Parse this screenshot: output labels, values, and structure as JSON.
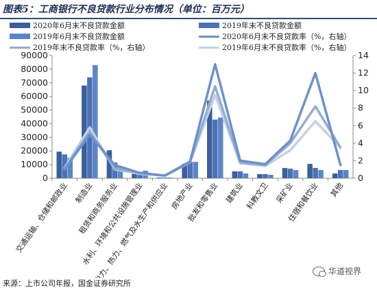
{
  "title": "图表5：工商银行不良贷款行业分布情况（单位：百万元）",
  "source": "来源：上市公司年报，国金证券研究所",
  "watermark": "华道视界",
  "chart_data": {
    "type": "bar",
    "categories": [
      "交通运输、仓储和邮政业",
      "制造业",
      "租赁和商务服务业",
      "水利、环境和公共设施管理业",
      "电力、热力、燃气及水生产和供应业",
      "房地产业",
      "批发和零售业",
      "建筑业",
      "科教文卫",
      "采矿业",
      "住宿和餐饮业",
      "其他"
    ],
    "series": [
      {
        "name": "2020年6月末不良贷款金额",
        "axis": "left",
        "kind": "bar",
        "color": "#3a5f9e",
        "values": [
          19500,
          68000,
          20500,
          4500,
          500,
          10500,
          57000,
          5000,
          3000,
          7500,
          10500,
          3500
        ]
      },
      {
        "name": "2019年末不良贷款金额",
        "axis": "left",
        "kind": "bar",
        "color": "#4a72b4",
        "values": [
          17500,
          74000,
          11500,
          4500,
          500,
          12000,
          43000,
          5000,
          3000,
          7000,
          7500,
          6000
        ]
      },
      {
        "name": "2019年6月末不良贷款金额",
        "axis": "left",
        "kind": "bar",
        "color": "#5a86c8",
        "values": [
          15000,
          83000,
          8500,
          5500,
          500,
          12000,
          44500,
          3500,
          2500,
          6000,
          6000,
          6000
        ]
      },
      {
        "name": "2020年6月末不良贷款率（%，右轴）",
        "axis": "right",
        "kind": "line",
        "color": "#6d91c9",
        "values": [
          1.0,
          5.0,
          1.5,
          0.6,
          0.3,
          1.9,
          13.0,
          2.0,
          1.6,
          4.3,
          12.0,
          1.5
        ]
      },
      {
        "name": "2019年末不良贷款率（%，右轴）",
        "axis": "right",
        "kind": "line",
        "color": "#93acd4",
        "values": [
          1.1,
          5.3,
          1.1,
          0.6,
          0.3,
          1.8,
          10.5,
          1.8,
          1.5,
          4.0,
          8.2,
          3.5
        ]
      },
      {
        "name": "2019年6月末不良贷款率（%，右轴）",
        "axis": "right",
        "kind": "line",
        "color": "#c3d0e6",
        "values": [
          1.2,
          5.8,
          1.0,
          0.5,
          0.3,
          1.8,
          9.5,
          1.7,
          1.4,
          3.2,
          6.5,
          3.5
        ]
      }
    ],
    "ylim": [
      0,
      90000
    ],
    "yticks": [
      0,
      10000,
      20000,
      30000,
      40000,
      50000,
      60000,
      70000,
      80000,
      90000
    ],
    "y2lim": [
      0,
      14
    ],
    "y2ticks": [
      0,
      2,
      4,
      6,
      8,
      10,
      12,
      14
    ],
    "grid": false,
    "legend_position": "top"
  }
}
